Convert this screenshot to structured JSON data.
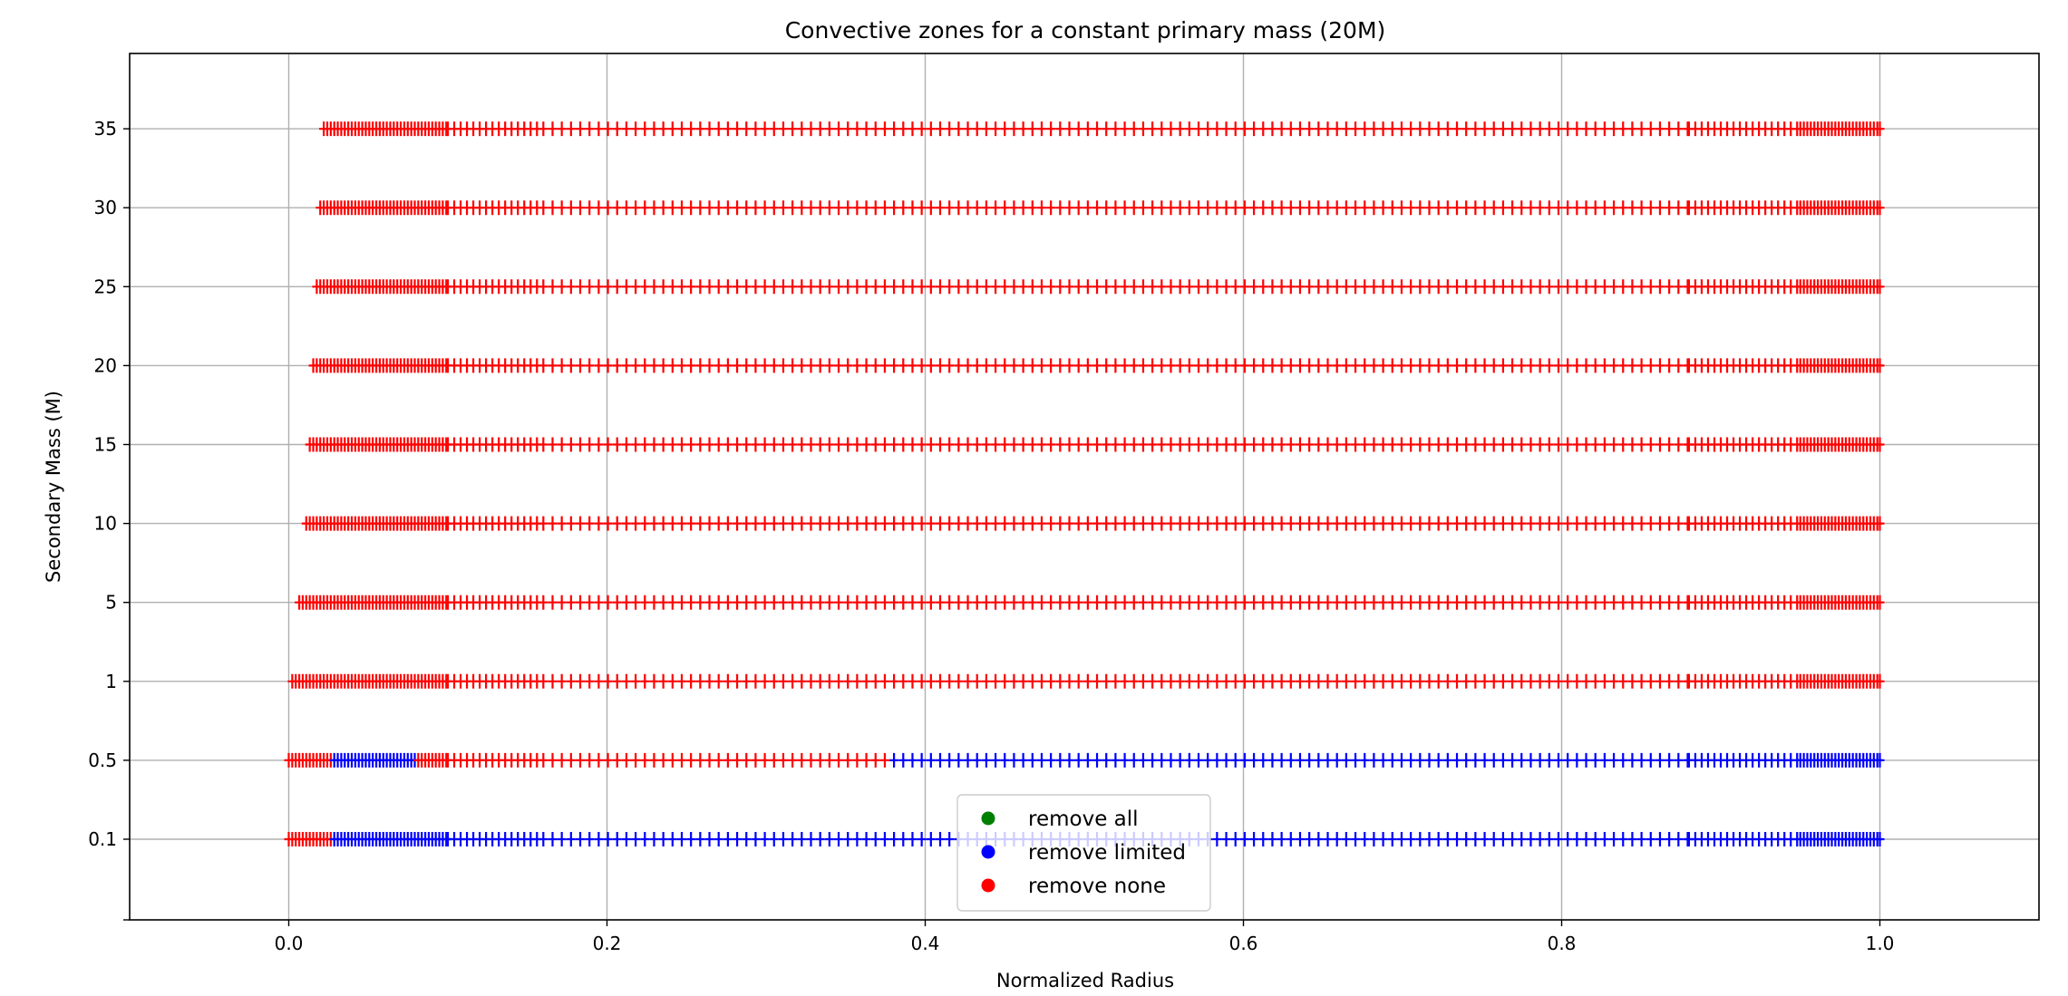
{
  "chart_data": {
    "type": "scatter",
    "title": "Convective zones for a constant primary mass (20M)",
    "xlabel": "Normalized Radius",
    "ylabel": "Secondary Mass (M)",
    "xlim": [
      -0.1,
      1.1
    ],
    "xticks": [
      "0.0",
      "0.2",
      "0.4",
      "0.6",
      "0.8",
      "1.0"
    ],
    "yticks": [
      "0.1",
      "0.5",
      "1",
      "5",
      "10",
      "15",
      "20",
      "25",
      "30",
      "35"
    ],
    "grid": true,
    "marker": "+",
    "legend": {
      "placement": "lower-center",
      "entries": [
        {
          "label": "remove all",
          "color": "#008000"
        },
        {
          "label": "remove limited",
          "color": "#0000ff"
        },
        {
          "label": "remove none",
          "color": "#ff0000"
        }
      ]
    },
    "colors": {
      "remove all": "#008000",
      "remove limited": "#0000ff",
      "remove none": "#ff0000"
    },
    "rows": [
      {
        "secondary_mass": "0.1",
        "segments": [
          {
            "category": "remove none",
            "from": 0.0,
            "to": 0.027
          },
          {
            "category": "remove limited",
            "from": 0.027,
            "to": 1.0
          }
        ]
      },
      {
        "secondary_mass": "0.5",
        "segments": [
          {
            "category": "remove none",
            "from": 0.0,
            "to": 0.027
          },
          {
            "category": "remove limited",
            "from": 0.027,
            "to": 0.08
          },
          {
            "category": "remove none",
            "from": 0.08,
            "to": 0.38
          },
          {
            "category": "remove limited",
            "from": 0.38,
            "to": 1.0
          }
        ]
      },
      {
        "secondary_mass": "1",
        "segments": [
          {
            "category": "remove none",
            "from": 0.002,
            "to": 1.0
          }
        ]
      },
      {
        "secondary_mass": "5",
        "segments": [
          {
            "category": "remove none",
            "from": 0.006,
            "to": 1.0
          }
        ]
      },
      {
        "secondary_mass": "10",
        "segments": [
          {
            "category": "remove none",
            "from": 0.01,
            "to": 1.0
          }
        ]
      },
      {
        "secondary_mass": "15",
        "segments": [
          {
            "category": "remove none",
            "from": 0.012,
            "to": 1.0
          }
        ]
      },
      {
        "secondary_mass": "20",
        "segments": [
          {
            "category": "remove none",
            "from": 0.015,
            "to": 1.0
          }
        ]
      },
      {
        "secondary_mass": "25",
        "segments": [
          {
            "category": "remove none",
            "from": 0.017,
            "to": 1.0
          }
        ]
      },
      {
        "secondary_mass": "30",
        "segments": [
          {
            "category": "remove none",
            "from": 0.019,
            "to": 1.0
          }
        ]
      },
      {
        "secondary_mass": "35",
        "segments": [
          {
            "category": "remove none",
            "from": 0.021,
            "to": 1.0
          }
        ]
      }
    ]
  }
}
